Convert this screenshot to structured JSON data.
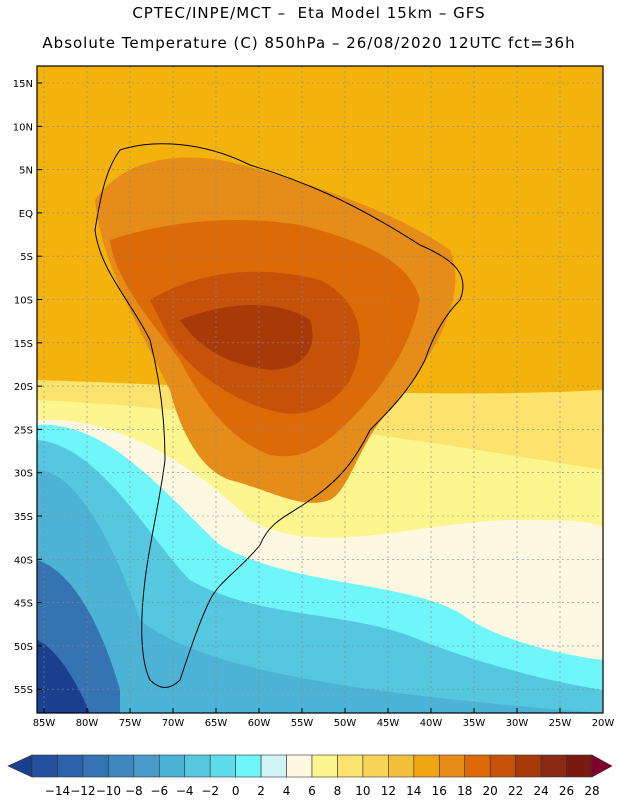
{
  "header": {
    "line1": "CPTEC/INPE/MCT –  Eta Model 15km – GFS",
    "line2": "Absolute Temperature (C) 850hPa – 26/08/2020 12UTC fct=36h"
  },
  "map": {
    "lat_labels": [
      "15N",
      "10N",
      "5N",
      "EQ",
      "5S",
      "10S",
      "15S",
      "20S",
      "25S",
      "30S",
      "35S",
      "40S",
      "45S",
      "50S",
      "55S"
    ],
    "lon_labels": [
      "85W",
      "80W",
      "75W",
      "70W",
      "65W",
      "60W",
      "55W",
      "50W",
      "45W",
      "40W",
      "35W",
      "30W",
      "25W",
      "20W"
    ],
    "lat_values": [
      15,
      10,
      5,
      0,
      -5,
      -10,
      -15,
      -20,
      -25,
      -30,
      -35,
      -40,
      -45,
      -50,
      -55
    ],
    "lon_values": [
      -85,
      -80,
      -75,
      -70,
      -65,
      -60,
      -55,
      -50,
      -45,
      -40,
      -35,
      -30,
      -25,
      -20
    ]
  },
  "colorbar": {
    "labels": [
      "-14",
      "-12",
      "-10",
      "-8",
      "-6",
      "-4",
      "-2",
      "0",
      "2",
      "4",
      "6",
      "8",
      "10",
      "12",
      "14",
      "16",
      "18",
      "20",
      "22",
      "24",
      "26",
      "28"
    ],
    "colors": [
      "#1b3f8f",
      "#24519f",
      "#2c62aa",
      "#3573b3",
      "#3f87bf",
      "#4a9bc9",
      "#4db3d6",
      "#55c8e0",
      "#5fdcea",
      "#6ff6fb",
      "#cff3f7",
      "#fef7e2",
      "#fdf58d",
      "#fbe36d",
      "#f8d456",
      "#f3c03c",
      "#efa414",
      "#e68c18",
      "#dc6a06",
      "#c6520a",
      "#a83a0a",
      "#8a2a12",
      "#7a1b12",
      "#7f0030"
    ]
  }
}
